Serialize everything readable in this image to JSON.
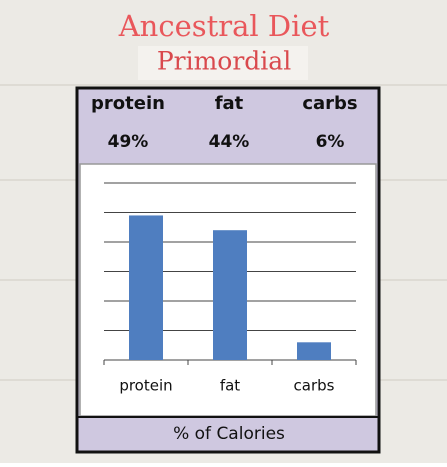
{
  "chart_data": {
    "type": "bar",
    "title": "Ancestral Diet",
    "subtitle": "Primordial",
    "categories": [
      "protein",
      "fat",
      "carbs"
    ],
    "values": [
      49,
      44,
      6
    ],
    "value_labels": [
      "49%",
      "44%",
      "6%"
    ],
    "color": "#4f7ec0",
    "x_label": "% of Calories",
    "ylim": [
      0,
      60
    ],
    "yticks": [
      0,
      10,
      20,
      30,
      40,
      50,
      60
    ],
    "grid": true
  }
}
